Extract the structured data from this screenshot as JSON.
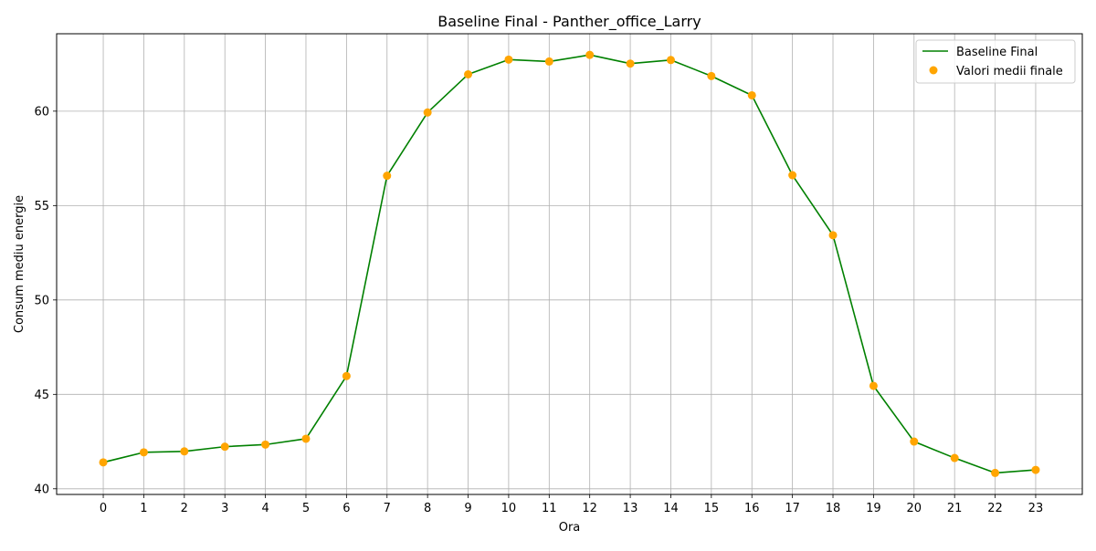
{
  "chart_data": {
    "type": "line",
    "title": "Baseline Final - Panther_office_Larry",
    "xlabel": "Ora",
    "ylabel": "Consum mediu energie",
    "x": [
      0,
      1,
      2,
      3,
      4,
      5,
      6,
      7,
      8,
      9,
      10,
      11,
      12,
      13,
      14,
      15,
      16,
      17,
      18,
      19,
      20,
      21,
      22,
      23
    ],
    "xticks": [
      "0",
      "1",
      "2",
      "3",
      "4",
      "5",
      "6",
      "7",
      "8",
      "9",
      "10",
      "11",
      "12",
      "13",
      "14",
      "15",
      "16",
      "17",
      "18",
      "19",
      "20",
      "21",
      "22",
      "23"
    ],
    "yticks": [
      40,
      45,
      50,
      55,
      60
    ],
    "ytick_labels": [
      "40",
      "45",
      "50",
      "55",
      "60"
    ],
    "xlim": [
      -1.15,
      24.15
    ],
    "ylim": [
      39.7,
      64.1
    ],
    "grid": true,
    "legend_position": "top-right",
    "series": [
      {
        "name": "Baseline Final",
        "kind": "line",
        "color": "#008000",
        "values": [
          41.4,
          41.93,
          41.98,
          42.23,
          42.34,
          42.65,
          45.97,
          56.58,
          59.93,
          61.95,
          62.73,
          62.63,
          62.98,
          62.52,
          62.71,
          61.86,
          60.84,
          56.61,
          53.43,
          45.45,
          42.5,
          41.63,
          40.84,
          41.0
        ]
      },
      {
        "name": "Valori medii finale",
        "kind": "scatter",
        "color": "#FFA500",
        "values": [
          41.4,
          41.93,
          41.98,
          42.23,
          42.34,
          42.65,
          45.97,
          56.58,
          59.93,
          61.95,
          62.73,
          62.63,
          62.98,
          62.52,
          62.71,
          61.86,
          60.84,
          56.61,
          53.43,
          45.45,
          42.5,
          41.63,
          40.84,
          41.0
        ]
      }
    ]
  }
}
